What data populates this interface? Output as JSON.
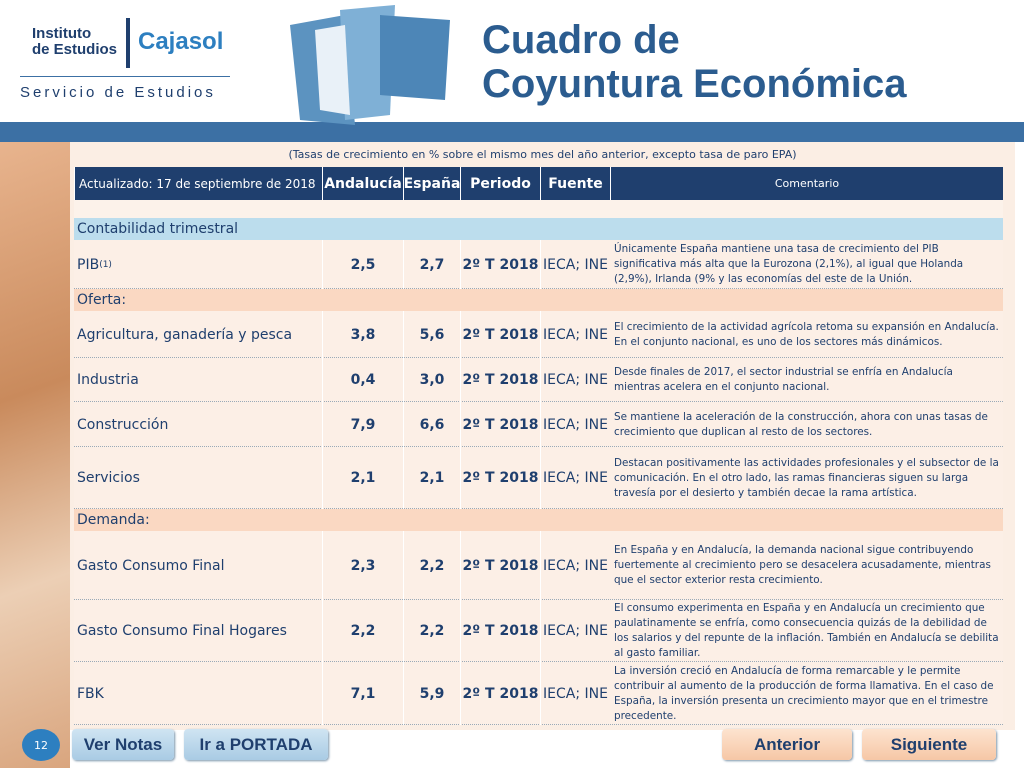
{
  "header": {
    "logo_line1": "Instituto",
    "logo_line2": "de Estudios",
    "logo_brand": "Cajasol",
    "service": "Servicio de Estudios",
    "title_line1": "Cuadro de",
    "title_line2": "Coyuntura Económica"
  },
  "table": {
    "note": "(Tasas de crecimiento en % sobre el mismo mes del año anterior, excepto tasa de paro EPA)",
    "columns": [
      "Actualizado: 17 de septiembre de 2018",
      "Andalucía",
      "España",
      "Periodo",
      "Fuente",
      "Comentario"
    ],
    "rows": [
      {
        "section": "Contabilidad trimestral"
      },
      {
        "label": "PIB",
        "sup": "(1)",
        "andalucia": "2,5",
        "espana": "2,7",
        "periodo": "2º T 2018",
        "fuente": "IECA; INE",
        "comentario": "Únicamente España mantiene una tasa de crecimiento del PIB significativa más alta que la Eurozona (2,1%), al igual que Holanda (2,9%), Irlanda (9% y las economías del este de la Unión."
      },
      {
        "section": "Oferta:"
      },
      {
        "label": "Agricultura, ganadería y pesca",
        "andalucia": "3,8",
        "espana": "5,6",
        "periodo": "2º T 2018",
        "fuente": "IECA; INE",
        "comentario": "El crecimiento de la actividad agrícola retoma su expansión en Andalucía. En el conjunto nacional, es uno de los sectores más dinámicos."
      },
      {
        "label": "Industria",
        "andalucia": "0,4",
        "espana": "3,0",
        "periodo": "2º T 2018",
        "fuente": "IECA; INE",
        "comentario": "Desde finales de 2017, el sector industrial se enfría en Andalucía mientras acelera en el conjunto nacional."
      },
      {
        "label": "Construcción",
        "andalucia": "7,9",
        "espana": "6,6",
        "periodo": "2º T 2018",
        "fuente": "IECA; INE",
        "comentario": "Se mantiene la aceleración de la construcción, ahora con unas tasas de crecimiento que duplican al resto de los sectores."
      },
      {
        "label": "Servicios",
        "andalucia": "2,1",
        "espana": "2,1",
        "periodo": "2º T 2018",
        "fuente": "IECA; INE",
        "comentario": "Destacan positivamente las actividades profesionales y el subsector de la comunicación. En el otro lado, las ramas financieras siguen su larga travesía por el desierto y también decae la rama artística."
      },
      {
        "section": "Demanda:"
      },
      {
        "label": "Gasto Consumo Final",
        "andalucia": "2,3",
        "espana": "2,2",
        "periodo": "2º T 2018",
        "fuente": "IECA; INE",
        "comentario": "En España y en Andalucía, la demanda nacional sigue contribuyendo fuertemente al crecimiento pero se desacelera acusadamente, mientras que el sector exterior resta crecimiento."
      },
      {
        "label": "Gasto Consumo Final Hogares",
        "andalucia": "2,2",
        "espana": "2,2",
        "periodo": "2º T 2018",
        "fuente": "IECA; INE",
        "comentario": "El consumo experimenta en España y en Andalucía un crecimiento que paulatinamente se enfría, como consecuencia quizás de la debilidad de los salarios y del repunte de la inflación. También en Andalucía se debilita al gasto familiar."
      },
      {
        "label": "FBK",
        "andalucia": "7,1",
        "espana": "5,9",
        "periodo": "2º T 2018",
        "fuente": "IECA; INE",
        "comentario": "La inversión creció en Andalucía de forma remarcable y le permite contribuir al aumento de la producción de forma llamativa. En el caso de España, la inversión presenta un crecimiento mayor que en el trimestre precedente."
      }
    ]
  },
  "footer": {
    "page": "12",
    "notes": "Ver Notas",
    "home": "Ir a PORTADA",
    "prev": "Anterior",
    "next": "Siguiente"
  }
}
